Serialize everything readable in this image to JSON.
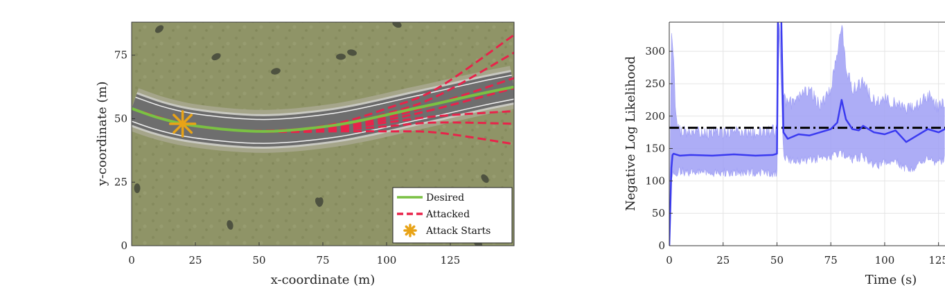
{
  "chart_data": [
    {
      "type": "line",
      "xlabel": "x-coordinate (m)",
      "ylabel": "y-coordinate (m)",
      "xlim": [
        0,
        150
      ],
      "ylim": [
        0,
        88
      ],
      "xticks": [
        0,
        25,
        50,
        75,
        100,
        125
      ],
      "yticks": [
        0,
        25,
        50,
        75
      ],
      "grid": false,
      "background": "aerial road map",
      "legend_position": "bottom-right",
      "attack_start": {
        "name": "Attack Starts",
        "x": 20,
        "y": 48,
        "color": "#e8a317"
      },
      "series": [
        {
          "name": "Desired",
          "color": "#7ac143",
          "x": [
            0,
            10,
            20,
            30,
            40,
            50,
            60,
            70,
            80,
            90,
            100,
            110,
            120,
            130,
            140,
            150
          ],
          "y": [
            54,
            50.5,
            48,
            46.5,
            45.5,
            45,
            45.3,
            46.2,
            47.5,
            49.3,
            51.5,
            53.8,
            56,
            58.3,
            60.5,
            62.5
          ]
        },
        {
          "name": "Attacked",
          "color": "#e8234a",
          "style": "dashed",
          "note_branches": "multiple attacked trajectories diverging after the attack start",
          "branches": [
            {
              "x": [
                0,
                20,
                40,
                60,
                80,
                100,
                120,
                150
              ],
              "y": [
                54,
                48,
                45.5,
                45.5,
                48,
                54,
                62,
                83
              ]
            },
            {
              "x": [
                0,
                20,
                40,
                60,
                80,
                100,
                120,
                150
              ],
              "y": [
                54,
                48,
                45.5,
                45.5,
                47.5,
                52,
                59,
                76
              ]
            },
            {
              "x": [
                0,
                20,
                40,
                60,
                80,
                100,
                120,
                150
              ],
              "y": [
                54,
                48,
                45.5,
                45.3,
                47,
                50.5,
                56,
                66
              ]
            },
            {
              "x": [
                0,
                20,
                40,
                60,
                80,
                100,
                120,
                150
              ],
              "y": [
                54,
                48,
                45.5,
                45.2,
                46.5,
                49.5,
                54,
                62
              ]
            },
            {
              "x": [
                0,
                20,
                40,
                60,
                80,
                100,
                120,
                150
              ],
              "y": [
                54,
                48,
                45.5,
                45,
                46,
                48.5,
                51,
                53
              ]
            },
            {
              "x": [
                0,
                20,
                40,
                60,
                80,
                100,
                120,
                150
              ],
              "y": [
                54,
                48,
                45.5,
                45,
                45.5,
                47,
                48.5,
                48
              ]
            },
            {
              "x": [
                0,
                20,
                40,
                60,
                80,
                100,
                120,
                150
              ],
              "y": [
                54,
                48,
                45.5,
                44.8,
                45,
                45,
                44.5,
                40
              ]
            }
          ]
        }
      ],
      "legend": [
        {
          "label": "Desired",
          "color": "#7ac143",
          "style": "solid"
        },
        {
          "label": "Attacked",
          "color": "#e8234a",
          "style": "dashed"
        },
        {
          "label": "Attack Starts",
          "color": "#e8a317",
          "style": "asterisk"
        }
      ]
    },
    {
      "type": "line",
      "xlabel": "Time (s)",
      "ylabel": "Negative Log Likelihood",
      "xlim": [
        0,
        128
      ],
      "ylim": [
        0,
        345
      ],
      "xticks": [
        0,
        25,
        50,
        75,
        100,
        125
      ],
      "yticks": [
        0,
        50,
        100,
        150,
        200,
        250,
        300
      ],
      "grid": true,
      "threshold": {
        "value": 182,
        "color": "#000000",
        "style": "dash-dot"
      },
      "series": [
        {
          "name": "mean",
          "color": "#3a3af0",
          "x": [
            0,
            0.5,
            1,
            1.5,
            2,
            5,
            10,
            20,
            30,
            40,
            48,
            50,
            50.5,
            51,
            52,
            53,
            55,
            60,
            65,
            70,
            75,
            78,
            80,
            82,
            85,
            88,
            90,
            95,
            100,
            105,
            110,
            115,
            120,
            125,
            128
          ],
          "y": [
            0,
            60,
            120,
            140,
            142,
            139,
            140,
            139,
            141,
            139,
            140,
            142,
            350,
            350,
            350,
            175,
            165,
            172,
            170,
            175,
            180,
            190,
            225,
            195,
            180,
            178,
            185,
            175,
            172,
            178,
            160,
            170,
            180,
            175,
            180
          ]
        },
        {
          "name": "band_upper",
          "color": "#9f9ff5",
          "x": [
            0,
            1,
            2,
            3,
            4,
            5,
            10,
            20,
            30,
            40,
            50,
            51,
            53,
            55,
            60,
            65,
            70,
            75,
            78,
            80,
            82,
            85,
            90,
            95,
            100,
            105,
            110,
            115,
            120,
            125,
            128
          ],
          "y": [
            0,
            330,
            290,
            200,
            180,
            175,
            172,
            172,
            173,
            172,
            175,
            345,
            230,
            215,
            225,
            240,
            215,
            235,
            300,
            345,
            275,
            240,
            250,
            220,
            225,
            215,
            205,
            215,
            230,
            210,
            220
          ]
        },
        {
          "name": "band_lower",
          "color": "#9f9ff5",
          "x": [
            0,
            1,
            2,
            5,
            10,
            20,
            30,
            40,
            50,
            51,
            53,
            55,
            60,
            65,
            70,
            75,
            80,
            85,
            90,
            95,
            100,
            105,
            110,
            115,
            120,
            125,
            128
          ],
          "y": [
            0,
            100,
            120,
            122,
            120,
            120,
            121,
            120,
            118,
            345,
            145,
            140,
            138,
            140,
            142,
            145,
            150,
            140,
            145,
            130,
            135,
            140,
            125,
            130,
            140,
            135,
            140
          ]
        }
      ]
    }
  ]
}
